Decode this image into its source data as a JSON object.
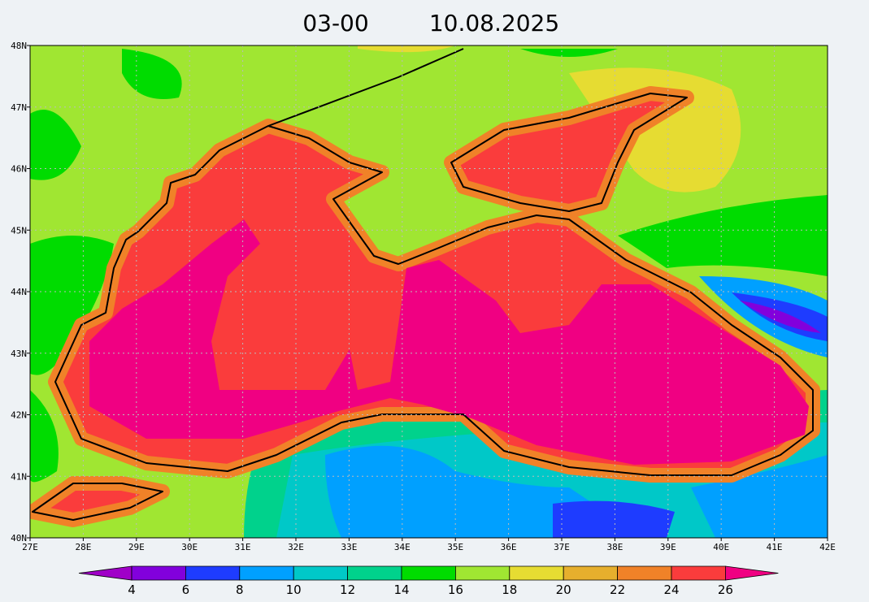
{
  "title": {
    "time": "03-00",
    "date": "10.08.2025"
  },
  "axes": {
    "lat": [
      "48N",
      "47N",
      "46N",
      "45N",
      "44N",
      "43N",
      "42N",
      "41N",
      "40N"
    ],
    "lon": [
      "27E",
      "28E",
      "29E",
      "30E",
      "31E",
      "32E",
      "33E",
      "34E",
      "35E",
      "36E",
      "37E",
      "38E",
      "39E",
      "40E",
      "41E",
      "42E"
    ]
  },
  "colorbar": {
    "levels": [
      4,
      6,
      8,
      10,
      12,
      14,
      16,
      18,
      20,
      22,
      24,
      26
    ],
    "colors": [
      "#a000c8",
      "#8200dc",
      "#1e3cff",
      "#00a0ff",
      "#00c8c8",
      "#00d28c",
      "#00dc00",
      "#a0e632",
      "#e6dc32",
      "#e6af2d",
      "#f08228",
      "#fa3c3c",
      "#f00082"
    ]
  }
}
